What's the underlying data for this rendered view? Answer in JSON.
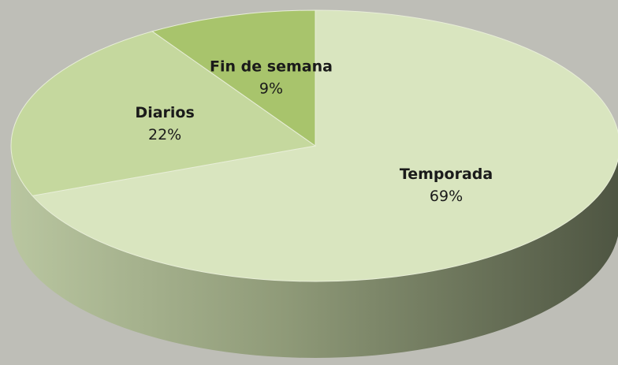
{
  "chart_data": {
    "type": "pie",
    "categories": [
      "Temporada",
      "Diarios",
      "Fin de semana"
    ],
    "values": [
      69,
      22,
      9
    ],
    "value_labels": [
      "69%",
      "22%",
      "9%"
    ],
    "colors": [
      "#d9e5bf",
      "#c5d89e",
      "#a8c46c"
    ]
  }
}
